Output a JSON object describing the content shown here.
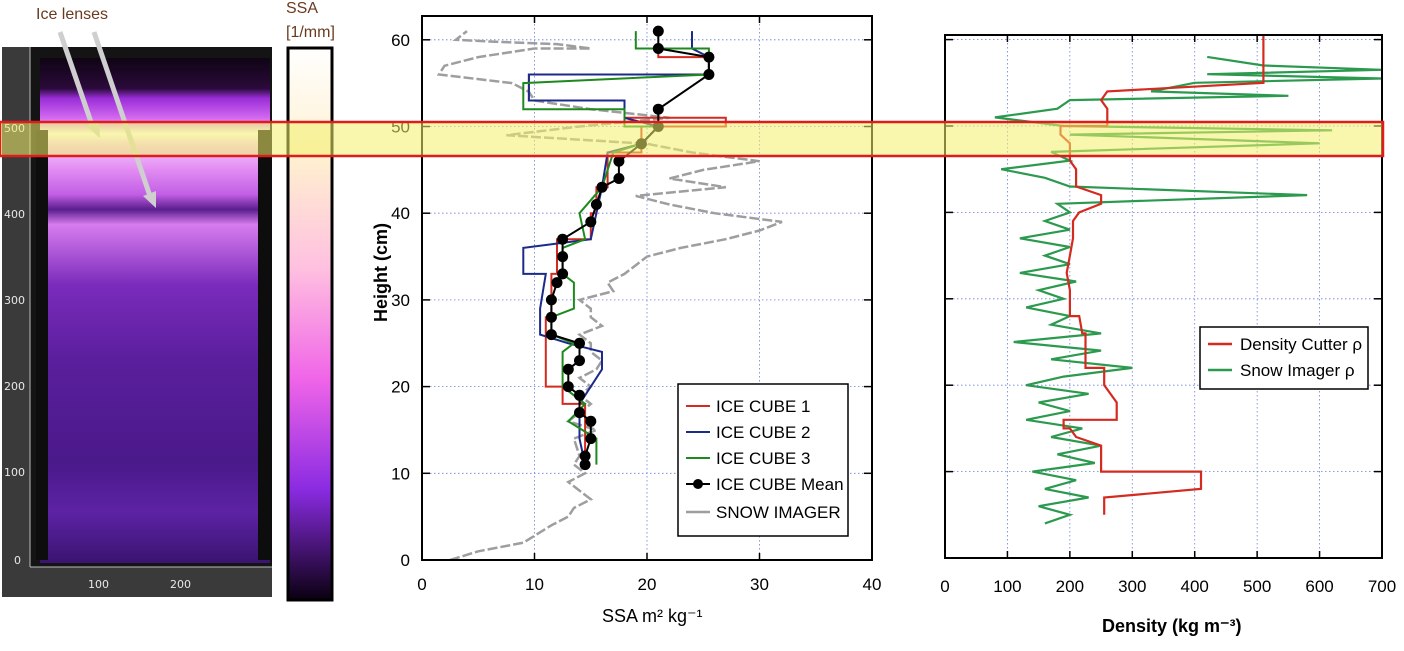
{
  "annotation": {
    "label": "Ice lenses"
  },
  "colorbar": {
    "title_line1": "SSA",
    "title_line2": "[1/mm]"
  },
  "image_panel": {
    "y_ticks": [
      "500",
      "400",
      "300",
      "200",
      "100",
      "0"
    ],
    "x_ticks": [
      "100",
      "200"
    ]
  },
  "chart_data": [
    {
      "type": "line",
      "xlabel": "SSA m² kg⁻¹",
      "ylabel": "Height (cm)",
      "xlim": [
        0,
        40
      ],
      "ylim": [
        0,
        62
      ],
      "x_ticks": [
        "0",
        "10",
        "20",
        "30",
        "40"
      ],
      "y_ticks": [
        "0",
        "10",
        "20",
        "30",
        "40",
        "50",
        "60"
      ],
      "grid": true,
      "legend_position": "bottom-right",
      "series": [
        {
          "name": "ICE CUBE 1",
          "color": "#d42a1f",
          "points": [
            [
              21,
              59
            ],
            [
              21,
              58
            ],
            [
              25.5,
              58
            ],
            [
              25.5,
              56
            ],
            [
              9.5,
              56
            ],
            [
              9.5,
              53
            ],
            [
              18,
              53
            ],
            [
              18,
              51
            ],
            [
              27,
              51
            ],
            [
              27,
              50
            ],
            [
              19.5,
              50
            ],
            [
              19.5,
              47
            ],
            [
              16.5,
              47
            ],
            [
              16.5,
              43
            ],
            [
              15.5,
              43
            ],
            [
              15.5,
              40
            ],
            [
              15,
              40
            ],
            [
              15,
              37
            ],
            [
              12,
              37
            ],
            [
              12,
              33
            ],
            [
              11.5,
              33
            ],
            [
              11.5,
              28
            ],
            [
              11,
              28
            ],
            [
              11,
              25
            ],
            [
              11,
              20
            ],
            [
              12.5,
              20
            ],
            [
              12.5,
              18
            ],
            [
              14.5,
              18
            ],
            [
              14.5,
              11
            ]
          ]
        },
        {
          "name": "ICE CUBE 2",
          "color": "#1c2a8a",
          "points": [
            [
              24,
              61
            ],
            [
              24,
              59
            ],
            [
              25.5,
              58
            ],
            [
              25.5,
              56
            ],
            [
              9.5,
              56
            ],
            [
              9.5,
              53
            ],
            [
              18,
              53
            ],
            [
              18,
              51
            ],
            [
              21,
              50
            ],
            [
              19.5,
              48
            ],
            [
              16.5,
              47
            ],
            [
              16,
              43
            ],
            [
              15.5,
              40
            ],
            [
              15,
              37
            ],
            [
              9,
              36
            ],
            [
              9,
              33
            ],
            [
              11,
              33
            ],
            [
              10.5,
              29
            ],
            [
              10.5,
              26
            ],
            [
              13,
              25
            ],
            [
              16,
              24
            ],
            [
              16,
              22
            ],
            [
              15,
              20
            ],
            [
              14,
              18
            ],
            [
              14,
              14
            ],
            [
              14.5,
              11
            ]
          ]
        },
        {
          "name": "ICE CUBE 3",
          "color": "#1e8a1e",
          "points": [
            [
              19,
              61
            ],
            [
              19,
              59
            ],
            [
              25.5,
              59
            ],
            [
              25.5,
              56
            ],
            [
              9,
              55
            ],
            [
              9,
              52
            ],
            [
              18,
              52
            ],
            [
              18,
              50
            ],
            [
              21,
              50
            ],
            [
              19.5,
              48
            ],
            [
              17,
              47
            ],
            [
              16,
              43
            ],
            [
              14,
              40
            ],
            [
              14.5,
              37
            ],
            [
              12.5,
              36
            ],
            [
              12.5,
              33
            ],
            [
              13.5,
              32
            ],
            [
              13.5,
              29
            ],
            [
              11.5,
              28
            ],
            [
              11.5,
              26
            ],
            [
              13.5,
              25
            ],
            [
              12.5,
              24
            ],
            [
              12.5,
              20
            ],
            [
              14.5,
              18
            ],
            [
              13,
              16
            ],
            [
              15.5,
              14
            ],
            [
              15.5,
              11
            ]
          ]
        },
        {
          "name": "ICE CUBE Mean",
          "color": "#000000",
          "points": [
            [
              21,
              61
            ],
            [
              21,
              59
            ],
            [
              25.5,
              58
            ],
            [
              25.5,
              56
            ],
            [
              21,
              52
            ],
            [
              21,
              50
            ],
            [
              19.5,
              48
            ],
            [
              17.5,
              46
            ],
            [
              17.5,
              44
            ],
            [
              16,
              43
            ],
            [
              15.5,
              41
            ],
            [
              15,
              39
            ],
            [
              12.5,
              37
            ],
            [
              12.5,
              35
            ],
            [
              12.5,
              33
            ],
            [
              12,
              32
            ],
            [
              11.5,
              30
            ],
            [
              11.5,
              28
            ],
            [
              11.5,
              26
            ],
            [
              14,
              25
            ],
            [
              14,
              23
            ],
            [
              13,
              22
            ],
            [
              13,
              20
            ],
            [
              14,
              19
            ],
            [
              14,
              17
            ],
            [
              15,
              16
            ],
            [
              15,
              14
            ],
            [
              14.5,
              12
            ],
            [
              14.5,
              11
            ]
          ]
        },
        {
          "name": "SNOW IMAGER",
          "color": "#9e9e9e",
          "points": [
            [
              2.5,
              0
            ],
            [
              5,
              1
            ],
            [
              9,
              2
            ],
            [
              11.5,
              4
            ],
            [
              13,
              5
            ],
            [
              13.5,
              6
            ],
            [
              15,
              7
            ],
            [
              14,
              8
            ],
            [
              13,
              9
            ],
            [
              14.5,
              10
            ],
            [
              13.5,
              11
            ],
            [
              14,
              12
            ],
            [
              13.5,
              14
            ],
            [
              15.5,
              15
            ],
            [
              13,
              16
            ],
            [
              14,
              17
            ],
            [
              15,
              18
            ],
            [
              14,
              19
            ],
            [
              15,
              20
            ],
            [
              14,
              21
            ],
            [
              15.5,
              22
            ],
            [
              16,
              23
            ],
            [
              15,
              24
            ],
            [
              15,
              25
            ],
            [
              14,
              26
            ],
            [
              16,
              27
            ],
            [
              15,
              28
            ],
            [
              15,
              29
            ],
            [
              14,
              30
            ],
            [
              17,
              31
            ],
            [
              16.5,
              32
            ],
            [
              18,
              33
            ],
            [
              19,
              34
            ],
            [
              20,
              35
            ],
            [
              23,
              36
            ],
            [
              27,
              37
            ],
            [
              30,
              38
            ],
            [
              32,
              39
            ],
            [
              26,
              40
            ],
            [
              22,
              41
            ],
            [
              19,
              42
            ],
            [
              27,
              43
            ],
            [
              22,
              44
            ],
            [
              25,
              45
            ],
            [
              30,
              46
            ],
            [
              24,
              47
            ],
            [
              20,
              48
            ],
            [
              7.5,
              49
            ],
            [
              14,
              50
            ],
            [
              22,
              51
            ],
            [
              15,
              52
            ],
            [
              10,
              53
            ],
            [
              9.5,
              54
            ],
            [
              8,
              55
            ],
            [
              1.5,
              56
            ],
            [
              2,
              57
            ],
            [
              5,
              58
            ],
            [
              10,
              59
            ],
            [
              15,
              59
            ],
            [
              12,
              59.5
            ],
            [
              6,
              59.8
            ],
            [
              3,
              60
            ],
            [
              4,
              61
            ]
          ]
        }
      ]
    },
    {
      "type": "line",
      "xlabel": "Density (kg m⁻³)",
      "xlim": [
        0,
        700
      ],
      "ylim": [
        0,
        62
      ],
      "x_ticks": [
        "0",
        "100",
        "200",
        "300",
        "400",
        "500",
        "600",
        "700"
      ],
      "grid": true,
      "legend_position": "center-right",
      "series": [
        {
          "name": "Density Cutter ρ",
          "color": "#d42a1f",
          "points": [
            [
              255,
              5
            ],
            [
              255,
              7
            ],
            [
              410,
              8
            ],
            [
              410,
              10
            ],
            [
              250,
              10
            ],
            [
              250,
              13
            ],
            [
              210,
              14
            ],
            [
              200,
              15
            ],
            [
              190,
              15
            ],
            [
              190,
              16
            ],
            [
              275,
              16
            ],
            [
              275,
              18
            ],
            [
              255,
              20
            ],
            [
              255,
              22
            ],
            [
              225,
              22
            ],
            [
              225,
              26
            ],
            [
              220,
              26
            ],
            [
              215,
              28
            ],
            [
              200,
              28
            ],
            [
              200,
              31
            ],
            [
              195,
              33
            ],
            [
              200,
              35
            ],
            [
              205,
              37
            ],
            [
              205,
              39
            ],
            [
              215,
              40
            ],
            [
              250,
              41
            ],
            [
              250,
              42
            ],
            [
              210,
              43
            ],
            [
              210,
              45
            ],
            [
              200,
              46
            ],
            [
              200,
              48
            ],
            [
              185,
              49
            ],
            [
              185,
              50
            ],
            [
              260,
              50
            ],
            [
              260,
              52
            ],
            [
              250,
              53
            ],
            [
              260,
              54
            ],
            [
              510,
              55
            ],
            [
              510,
              57
            ],
            [
              510,
              60
            ],
            [
              510,
              62
            ]
          ]
        },
        {
          "name": "Snow Imager ρ",
          "color": "#2b9a4e",
          "points": [
            [
              160,
              4
            ],
            [
              200,
              5
            ],
            [
              150,
              6
            ],
            [
              230,
              7
            ],
            [
              160,
              8
            ],
            [
              210,
              9
            ],
            [
              140,
              10
            ],
            [
              240,
              11
            ],
            [
              180,
              12
            ],
            [
              250,
              13
            ],
            [
              170,
              14
            ],
            [
              220,
              15
            ],
            [
              130,
              16
            ],
            [
              200,
              17
            ],
            [
              150,
              18
            ],
            [
              230,
              19
            ],
            [
              130,
              20
            ],
            [
              190,
              21
            ],
            [
              300,
              22
            ],
            [
              170,
              23
            ],
            [
              250,
              24
            ],
            [
              110,
              25
            ],
            [
              250,
              26
            ],
            [
              170,
              27
            ],
            [
              200,
              28
            ],
            [
              130,
              29
            ],
            [
              190,
              30
            ],
            [
              150,
              31
            ],
            [
              210,
              32
            ],
            [
              120,
              33
            ],
            [
              200,
              34
            ],
            [
              160,
              35
            ],
            [
              200,
              36
            ],
            [
              120,
              37
            ],
            [
              200,
              38
            ],
            [
              160,
              39
            ],
            [
              200,
              40
            ],
            [
              180,
              41
            ],
            [
              580,
              42
            ],
            [
              200,
              43
            ],
            [
              160,
              44
            ],
            [
              90,
              45
            ],
            [
              200,
              46
            ],
            [
              170,
              47
            ],
            [
              600,
              48
            ],
            [
              200,
              49
            ],
            [
              620,
              49.5
            ],
            [
              190,
              50
            ],
            [
              80,
              51
            ],
            [
              180,
              52
            ],
            [
              200,
              53
            ],
            [
              550,
              53.5
            ],
            [
              330,
              54
            ],
            [
              400,
              55
            ],
            [
              700,
              55.5
            ],
            [
              420,
              56
            ],
            [
              700,
              56.5
            ],
            [
              510,
              57
            ],
            [
              420,
              58
            ]
          ]
        }
      ]
    }
  ]
}
